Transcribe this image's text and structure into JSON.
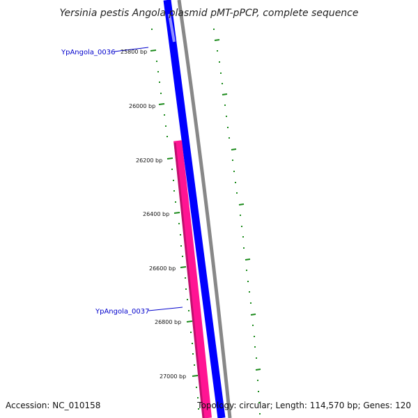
{
  "title": "Yersinia pestis Angola plasmid pMT-pPCP, complete sequence",
  "footer": {
    "accession": "Accession: NC_010158",
    "summary": "Topology: circular; Length: 114,570 bp; Genes: 120"
  },
  "colors": {
    "backbone": "#888888",
    "forward_gene": "#0000ff",
    "reverse_gene": "#ff1493",
    "ticks": "#1a8a1a",
    "gene_label": "#0000cc"
  },
  "scale_labels": [
    "25800 bp",
    "26000 bp",
    "26200 bp",
    "26400 bp",
    "26600 bp",
    "26800 bp",
    "27000 bp"
  ],
  "genes": [
    {
      "name": "YpAngola_0036",
      "strand": "forward"
    },
    {
      "name": "YpAngola_0037",
      "strand": "reverse"
    }
  ]
}
